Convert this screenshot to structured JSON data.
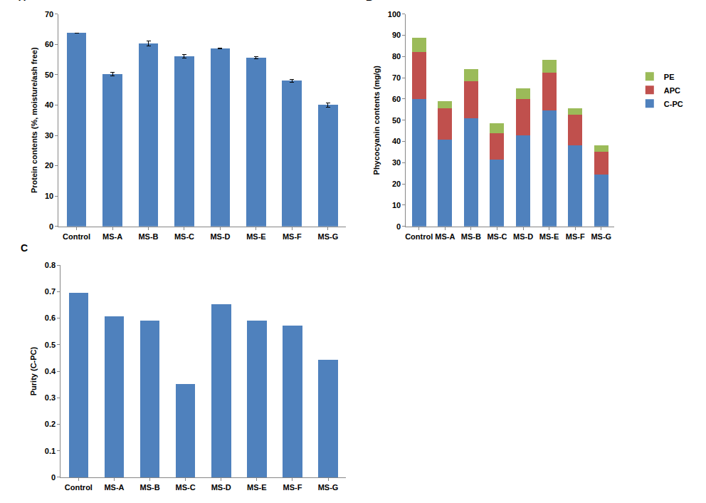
{
  "chart_data": [
    {
      "type": "bar",
      "title": "A",
      "categories": [
        "Control",
        "MS-A",
        "MS-B",
        "MS-C",
        "MS-D",
        "MS-E",
        "MS-F",
        "MS-G"
      ],
      "values": [
        63.8,
        50.2,
        60.4,
        56.1,
        58.7,
        55.6,
        48.0,
        40.0
      ],
      "error": [
        0,
        0.6,
        0.8,
        0.6,
        0.2,
        0.3,
        0.4,
        0.7
      ],
      "color": "#4f81bd",
      "ylabel": "Protein contents (%, moisture/ash free)",
      "ylim": [
        0,
        70
      ],
      "yticks": [
        0,
        10,
        20,
        30,
        40,
        50,
        60,
        70
      ],
      "grid": false
    },
    {
      "type": "bar",
      "title": "B",
      "stacked": true,
      "categories": [
        "Control",
        "MS-A",
        "MS-B",
        "MS-C",
        "MS-D",
        "MS-E",
        "MS-F",
        "MS-G"
      ],
      "series": [
        {
          "name": "C-PC",
          "color": "#4f81bd",
          "values": [
            60,
            41,
            51,
            31.5,
            43,
            54.5,
            38,
            24.5
          ]
        },
        {
          "name": "APC",
          "color": "#c0504d",
          "values": [
            22,
            14.5,
            17.5,
            12.5,
            17,
            18,
            14.5,
            10.5
          ]
        },
        {
          "name": "PE",
          "color": "#9bbb59",
          "values": [
            7,
            3.5,
            5.5,
            4.5,
            5,
            6,
            3,
            3
          ]
        }
      ],
      "ylabel": "Phycocyanin contents (mg/g)",
      "ylim": [
        0,
        100
      ],
      "yticks": [
        0,
        10,
        20,
        30,
        40,
        50,
        60,
        70,
        80,
        90,
        100
      ],
      "legend": "right",
      "grid": false
    },
    {
      "type": "bar",
      "title": "C",
      "categories": [
        "Control",
        "MS-A",
        "MS-B",
        "MS-C",
        "MS-D",
        "MS-E",
        "MS-F",
        "MS-G"
      ],
      "values": [
        0.695,
        0.607,
        0.59,
        0.352,
        0.652,
        0.59,
        0.573,
        0.442
      ],
      "color": "#4f81bd",
      "ylabel": "Purity (C-PC)",
      "ylim": [
        0,
        0.8
      ],
      "yticks": [
        0,
        0.1,
        0.2,
        0.3,
        0.4,
        0.5,
        0.6,
        0.7,
        0.8
      ],
      "grid": false
    }
  ]
}
